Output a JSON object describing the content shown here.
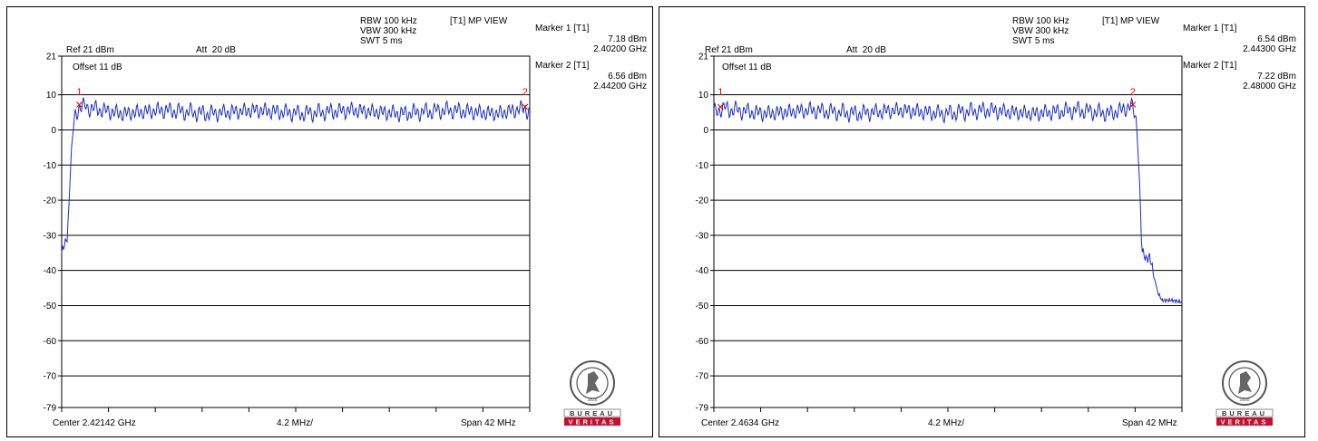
{
  "colors": {
    "trace": "#1a2fbf",
    "marker": "#e00000",
    "grid": "#000000",
    "brand_red": "#c8102e"
  },
  "chart_data": [
    {
      "type": "line",
      "ref_level": "Ref 21 dBm",
      "attenuation": "Att  20 dB",
      "offset": "Offset 11 dB",
      "rbw": "RBW 100 kHz",
      "vbw": "VBW 300 kHz",
      "swt": "SWT 5 ms",
      "view": "[T1] MP VIEW",
      "center": "Center 2.42142 GHz",
      "div": "4.2 MHz/",
      "span": "Span 42 MHz",
      "y_ticks": [
        "21",
        "10",
        "0",
        "-10",
        "-20",
        "-30",
        "-40",
        "-50",
        "-60",
        "-70",
        "-79"
      ],
      "ylim": [
        -79,
        21
      ],
      "x_unit": "GHz",
      "xlim": [
        2.40042,
        2.44242
      ],
      "markers": [
        {
          "title": "Marker 1 [T1]",
          "num": "1",
          "level": "7.18 dBm",
          "freq": "2.40200 GHz",
          "x": 2.402,
          "y": 7.18
        },
        {
          "title": "Marker 2 [T1]",
          "num": "2",
          "level": "6.56 dBm",
          "freq": "2.44200 GHz",
          "x": 2.442,
          "y": 6.56
        }
      ],
      "trace": [
        [
          2.40042,
          -35
        ],
        [
          2.4006,
          -33
        ],
        [
          2.4009,
          -31
        ],
        [
          2.4011,
          -20
        ],
        [
          2.4013,
          -5
        ],
        [
          2.4016,
          4
        ],
        [
          2.402,
          7.18
        ],
        [
          2.4058,
          5
        ],
        [
          2.4095,
          6
        ],
        [
          2.4135,
          5
        ],
        [
          2.4178,
          6
        ],
        [
          2.4221,
          5
        ],
        [
          2.4265,
          6
        ],
        [
          2.4308,
          5
        ],
        [
          2.435,
          6
        ],
        [
          2.4395,
          5
        ],
        [
          2.442,
          6.56
        ],
        [
          2.44242,
          5
        ]
      ],
      "brand": {
        "name": "BUREAU",
        "sub": "VERITAS",
        "year": "1828"
      }
    },
    {
      "type": "line",
      "ref_level": "Ref 21 dBm",
      "attenuation": "Att  20 dB",
      "offset": "Offset 11 dB",
      "rbw": "RBW 100 kHz",
      "vbw": "VBW 300 kHz",
      "swt": "SWT 5 ms",
      "view": "[T1] MP VIEW",
      "center": "Center 2.4634 GHz",
      "div": "4.2 MHz/",
      "span": "Span 42 MHz",
      "y_ticks": [
        "21",
        "10",
        "0",
        "-10",
        "-20",
        "-30",
        "-40",
        "-50",
        "-60",
        "-70",
        "-79"
      ],
      "ylim": [
        -79,
        21
      ],
      "x_unit": "GHz",
      "xlim": [
        2.4424,
        2.4844
      ],
      "markers": [
        {
          "title": "Marker 1 [T1]",
          "num": "1",
          "level": "6.54 dBm",
          "freq": "2.44300 GHz",
          "x": 2.443,
          "y": 6.54
        },
        {
          "title": "Marker 2 [T1]",
          "num": "2",
          "level": "7.22 dBm",
          "freq": "2.48000 GHz",
          "x": 2.48,
          "y": 7.22
        }
      ],
      "trace": [
        [
          2.4424,
          5
        ],
        [
          2.443,
          6.54
        ],
        [
          2.447,
          5
        ],
        [
          2.451,
          6
        ],
        [
          2.455,
          5
        ],
        [
          2.459,
          6
        ],
        [
          2.463,
          5
        ],
        [
          2.467,
          6
        ],
        [
          2.471,
          5
        ],
        [
          2.475,
          6
        ],
        [
          2.478,
          5
        ],
        [
          2.48,
          7.22
        ],
        [
          2.4803,
          3
        ],
        [
          2.4806,
          -15
        ],
        [
          2.4808,
          -34
        ],
        [
          2.4812,
          -37
        ],
        [
          2.4815,
          -36
        ],
        [
          2.4818,
          -40
        ],
        [
          2.4822,
          -46
        ],
        [
          2.4826,
          -48.5
        ],
        [
          2.4835,
          -48.5
        ],
        [
          2.4844,
          -49
        ]
      ],
      "brand": {
        "name": "BUREAU",
        "sub": "VERITAS",
        "year": "1828"
      }
    }
  ]
}
